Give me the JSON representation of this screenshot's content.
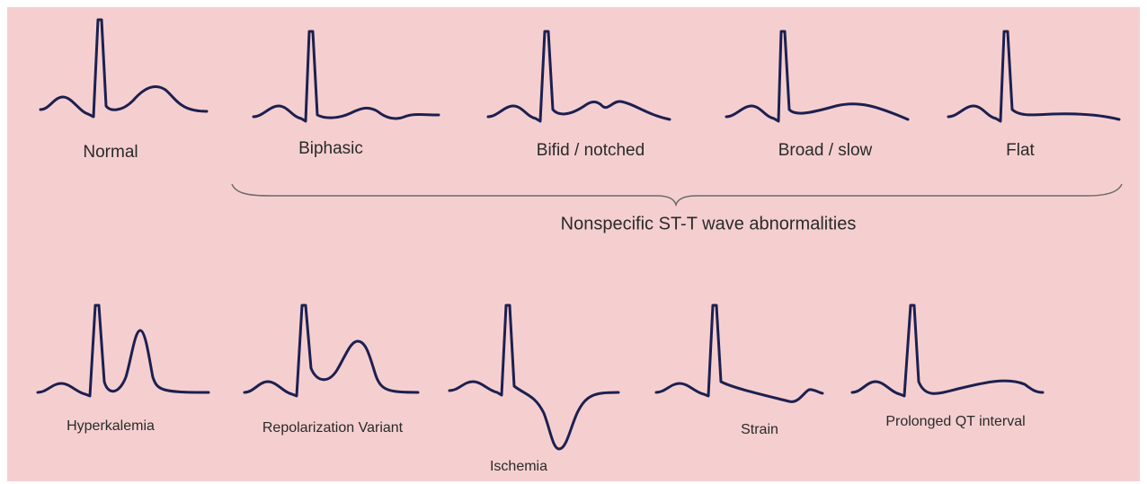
{
  "top_row": {
    "labels": [
      "Normal",
      "Biphasic",
      "Bifid / notched",
      "Broad / slow",
      "Flat"
    ],
    "group_caption": "Nonspecific ST-T wave abnormalities"
  },
  "bottom_row": {
    "labels": [
      "Hyperkalemia",
      "Repolarization Variant",
      "Ischemia",
      "Strain",
      "Prolonged QT interval"
    ]
  }
}
